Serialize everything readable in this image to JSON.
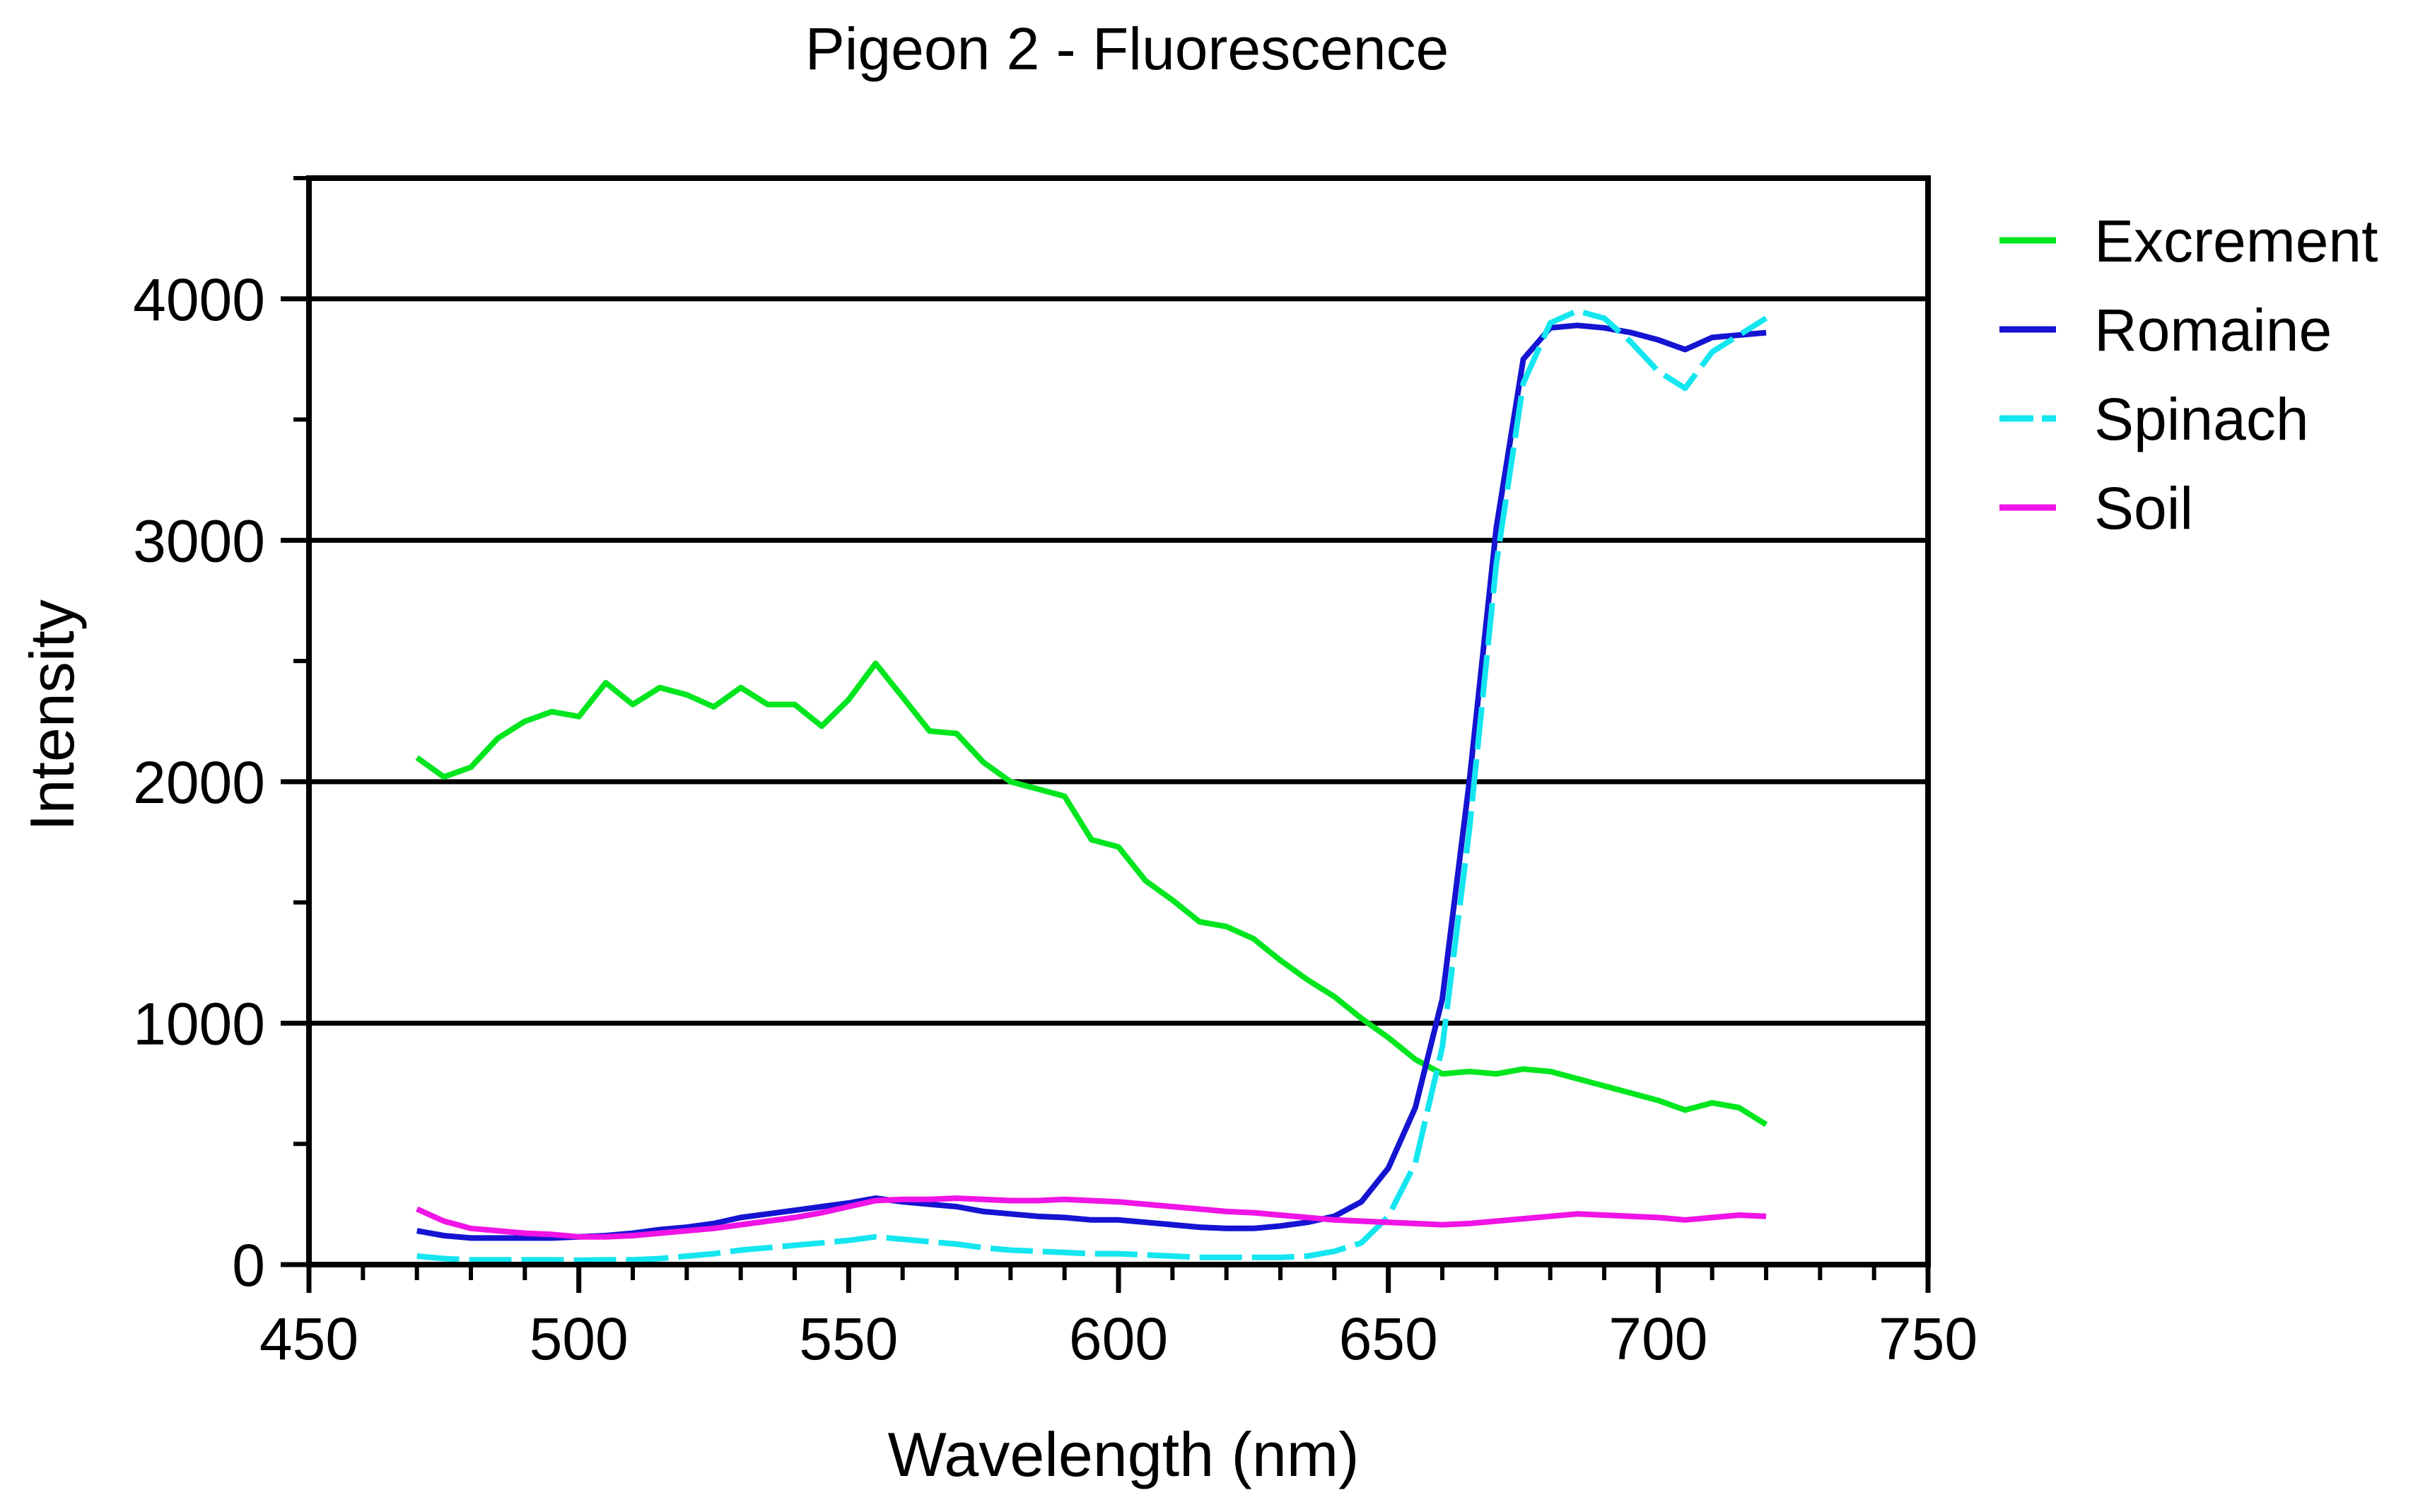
{
  "chart_data": {
    "type": "line",
    "title": "Pigeon 2 - Fluorescence",
    "xlabel": "Wavelength (nm)",
    "ylabel": "Intensity",
    "xlim": [
      450,
      750
    ],
    "ylim": [
      0,
      4500
    ],
    "x_ticks": [
      450,
      500,
      550,
      600,
      650,
      700,
      750
    ],
    "y_ticks": [
      0,
      1000,
      2000,
      3000,
      4000
    ],
    "grid": "horizontal major",
    "legend_position": "right",
    "x": [
      470,
      475,
      480,
      485,
      490,
      495,
      500,
      505,
      510,
      515,
      520,
      525,
      530,
      535,
      540,
      545,
      550,
      555,
      560,
      565,
      570,
      575,
      580,
      585,
      590,
      595,
      600,
      605,
      610,
      615,
      620,
      625,
      630,
      635,
      640,
      645,
      650,
      655,
      660,
      665,
      670,
      675,
      680,
      685,
      690,
      695,
      700,
      705,
      710,
      715,
      720
    ],
    "series": [
      {
        "name": "Excrement",
        "color": "#00e61e",
        "dash": "solid",
        "values": [
          2100,
          2020,
          2060,
          2180,
          2250,
          2290,
          2270,
          2410,
          2320,
          2390,
          2360,
          2310,
          2390,
          2320,
          2320,
          2230,
          2340,
          2490,
          2350,
          2210,
          2200,
          2080,
          2000,
          1970,
          1940,
          1760,
          1730,
          1590,
          1510,
          1420,
          1400,
          1350,
          1260,
          1180,
          1110,
          1020,
          940,
          850,
          790,
          800,
          790,
          810,
          800,
          770,
          740,
          710,
          680,
          640,
          670,
          650,
          580
        ]
      },
      {
        "name": "Romaine",
        "color": "#1414d2",
        "dash": "solid",
        "values": [
          140,
          120,
          110,
          110,
          110,
          110,
          115,
          120,
          130,
          145,
          155,
          170,
          195,
          210,
          225,
          240,
          255,
          275,
          260,
          250,
          240,
          220,
          210,
          200,
          195,
          185,
          185,
          175,
          165,
          155,
          150,
          150,
          160,
          175,
          200,
          260,
          400,
          650,
          1100,
          2000,
          3050,
          3750,
          3880,
          3890,
          3880,
          3860,
          3830,
          3790,
          3840,
          3850,
          3860
        ]
      },
      {
        "name": "Spinach",
        "color": "#14e6f0",
        "dash": "dashed",
        "values": [
          35,
          25,
          20,
          20,
          20,
          20,
          18,
          20,
          20,
          25,
          35,
          45,
          60,
          70,
          80,
          90,
          100,
          115,
          105,
          95,
          85,
          70,
          60,
          55,
          50,
          45,
          45,
          40,
          35,
          30,
          30,
          30,
          30,
          35,
          55,
          90,
          200,
          420,
          900,
          1800,
          2900,
          3650,
          3900,
          3950,
          3920,
          3820,
          3700,
          3630,
          3780,
          3850,
          3920
        ]
      },
      {
        "name": "Soil",
        "color": "#f014e6",
        "dash": "solid",
        "values": [
          230,
          180,
          150,
          140,
          130,
          125,
          115,
          115,
          120,
          130,
          140,
          150,
          165,
          180,
          195,
          215,
          240,
          265,
          270,
          270,
          275,
          270,
          265,
          265,
          270,
          265,
          260,
          250,
          240,
          230,
          220,
          215,
          205,
          195,
          185,
          180,
          175,
          170,
          165,
          170,
          180,
          190,
          200,
          210,
          205,
          200,
          195,
          185,
          195,
          205,
          200
        ]
      }
    ]
  }
}
